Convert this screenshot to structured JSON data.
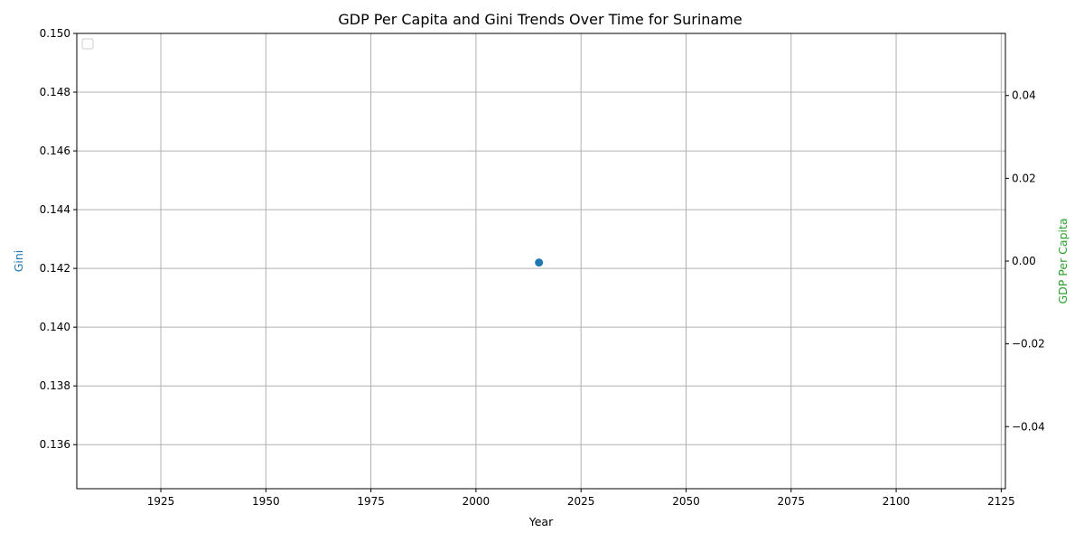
{
  "chart_data": {
    "type": "scatter",
    "title": "GDP Per Capita and Gini Trends Over Time for Suriname",
    "xlabel": "Year",
    "ylabel_left": "Gini",
    "ylabel_right": "GDP Per Capita",
    "xlim": [
      1905,
      2126
    ],
    "ylim_left": [
      0.1345,
      0.15
    ],
    "ylim_right": [
      -0.055,
      0.055
    ],
    "x_ticks": [
      1925,
      1950,
      1975,
      2000,
      2025,
      2050,
      2075,
      2100,
      2125
    ],
    "y_left_ticks": [
      0.136,
      0.138,
      0.14,
      0.142,
      0.144,
      0.146,
      0.148,
      0.15
    ],
    "y_left_tick_labels": [
      "0.136",
      "0.138",
      "0.140",
      "0.142",
      "0.144",
      "0.146",
      "0.148",
      "0.150"
    ],
    "y_right_ticks": [
      -0.04,
      -0.02,
      0.0,
      0.02,
      0.04
    ],
    "y_right_tick_labels": [
      "−0.04",
      "−0.02",
      "0.00",
      "0.02",
      "0.04"
    ],
    "grid": true,
    "legend": "top-left (empty)",
    "series": [
      {
        "axis": "left",
        "color": "#1f77b4",
        "points": [
          {
            "x": 2015,
            "y": 0.1422
          }
        ]
      }
    ],
    "colors": {
      "gini_label": "#1f77b4",
      "gdp_label": "#2ca02c",
      "grid": "#b0b0b0"
    }
  }
}
